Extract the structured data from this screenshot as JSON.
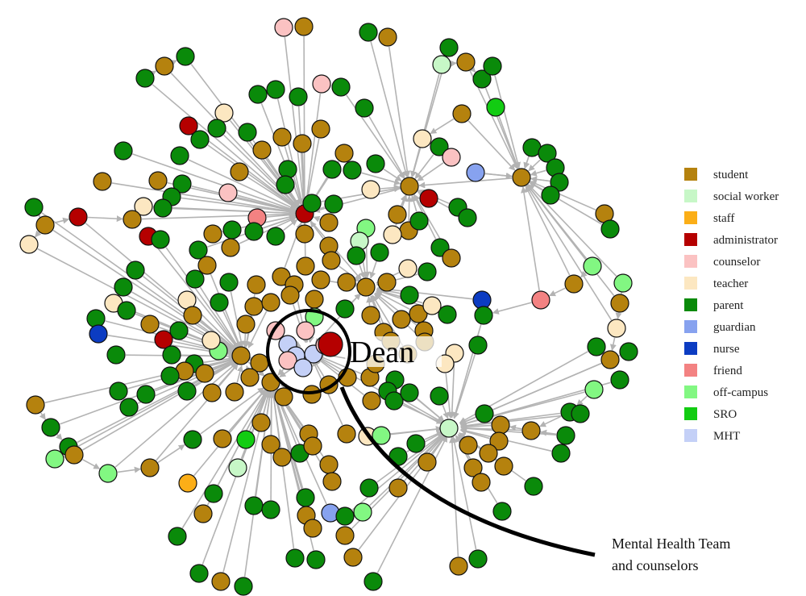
{
  "legend": [
    {
      "key": "student",
      "label": "student",
      "color": "#b5820e"
    },
    {
      "key": "social_worker",
      "label": "social worker",
      "color": "#c7f7c7"
    },
    {
      "key": "staff",
      "label": "staff",
      "color": "#fbae17"
    },
    {
      "key": "administrator",
      "label": "administrator",
      "color": "#b50000"
    },
    {
      "key": "counselor",
      "label": "counselor",
      "color": "#fbc2c2"
    },
    {
      "key": "teacher",
      "label": "teacher",
      "color": "#fce7c1"
    },
    {
      "key": "parent",
      "label": "parent",
      "color": "#0a8a0a"
    },
    {
      "key": "guardian",
      "label": "guardian",
      "color": "#87a2ef"
    },
    {
      "key": "nurse",
      "label": "nurse",
      "color": "#0c3cc2"
    },
    {
      "key": "friend",
      "label": "friend",
      "color": "#f38282"
    },
    {
      "key": "off_campus",
      "label": "off-campus",
      "color": "#82f782"
    },
    {
      "key": "sro",
      "label": "SRO",
      "color": "#12cc12"
    },
    {
      "key": "mht",
      "label": "MHT",
      "color": "#c4d0f7"
    }
  ],
  "labels": {
    "dean": "Dean",
    "annotation_line1": "Mental Health Team",
    "annotation_line2": "and counselors"
  },
  "colors": {
    "edge": "#b3b3b3",
    "node_stroke": "#111111",
    "callout": "#000000"
  }
}
